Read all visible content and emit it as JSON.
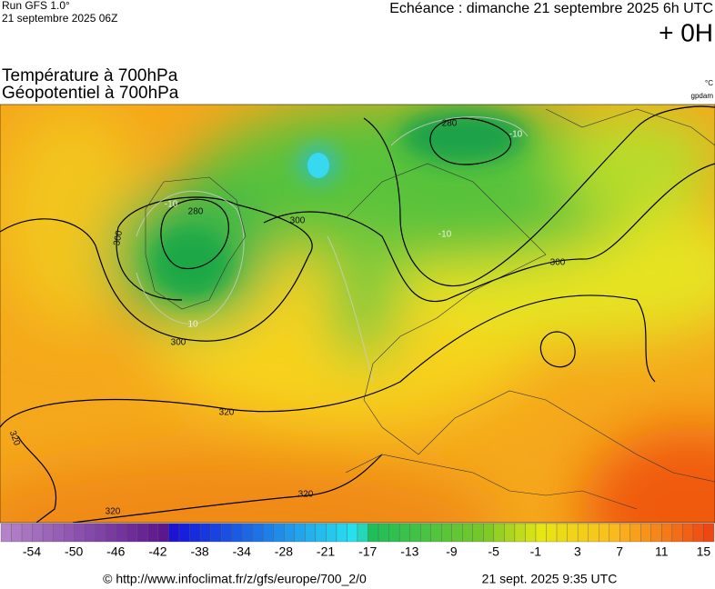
{
  "header": {
    "run": "Run GFS 1.0°",
    "run_date": "21 septembre 2025 06Z",
    "valid": "Echéance : dimanche 21 septembre 2025 6h UTC",
    "lead": "+ 0H",
    "title1": "Température à 700hPa",
    "title2": "Géopotentiel à 700hPa",
    "unit1": "°C",
    "unit2": "gpdam"
  },
  "contour_labels": [
    "280",
    "280",
    "300",
    "300",
    "300",
    "300",
    "320",
    "320",
    "320",
    "320",
    "-10",
    "-10",
    "-10",
    "10"
  ],
  "colorbar": {
    "labels": [
      "-54",
      "-50",
      "-46",
      "-42",
      "-38",
      "-34",
      "-28",
      "-21",
      "-17",
      "-13",
      "-9",
      "-5",
      "-1",
      "3",
      "7",
      "11",
      "15"
    ]
  },
  "footer": {
    "source": "© http://www.infoclimat.fr/z/gfs/europe/700_2/0",
    "generated": "21 sept. 2025  9:35 UTC"
  }
}
